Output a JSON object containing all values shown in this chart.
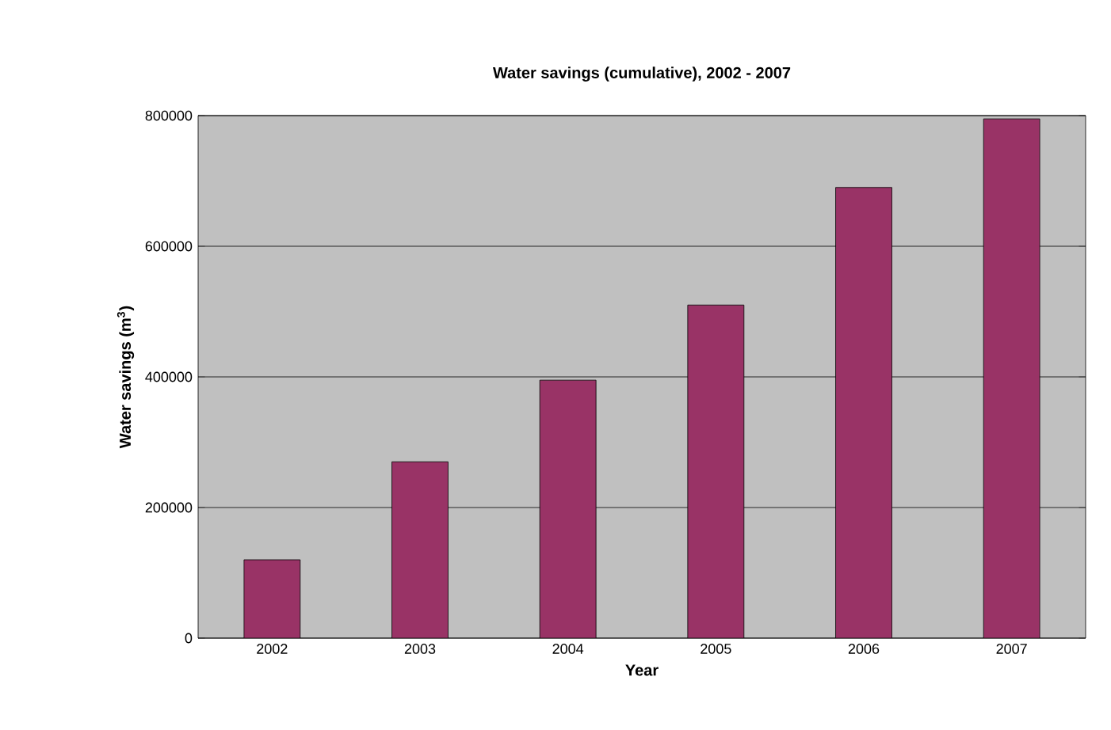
{
  "chart_data": {
    "type": "bar",
    "title": "Water savings (cumulative), 2002 - 2007",
    "xlabel": "Year",
    "ylabel": "Water savings (m$^{3}$)",
    "categories": [
      "2002",
      "2003",
      "2004",
      "2005",
      "2006",
      "2007"
    ],
    "values": [
      120000,
      270000,
      395000,
      510000,
      690000,
      795000
    ],
    "color": "#993366",
    "ylim": [
      0,
      800000
    ],
    "yticks": [
      0,
      200000,
      400000,
      600000,
      800000
    ],
    "grid": "y"
  }
}
